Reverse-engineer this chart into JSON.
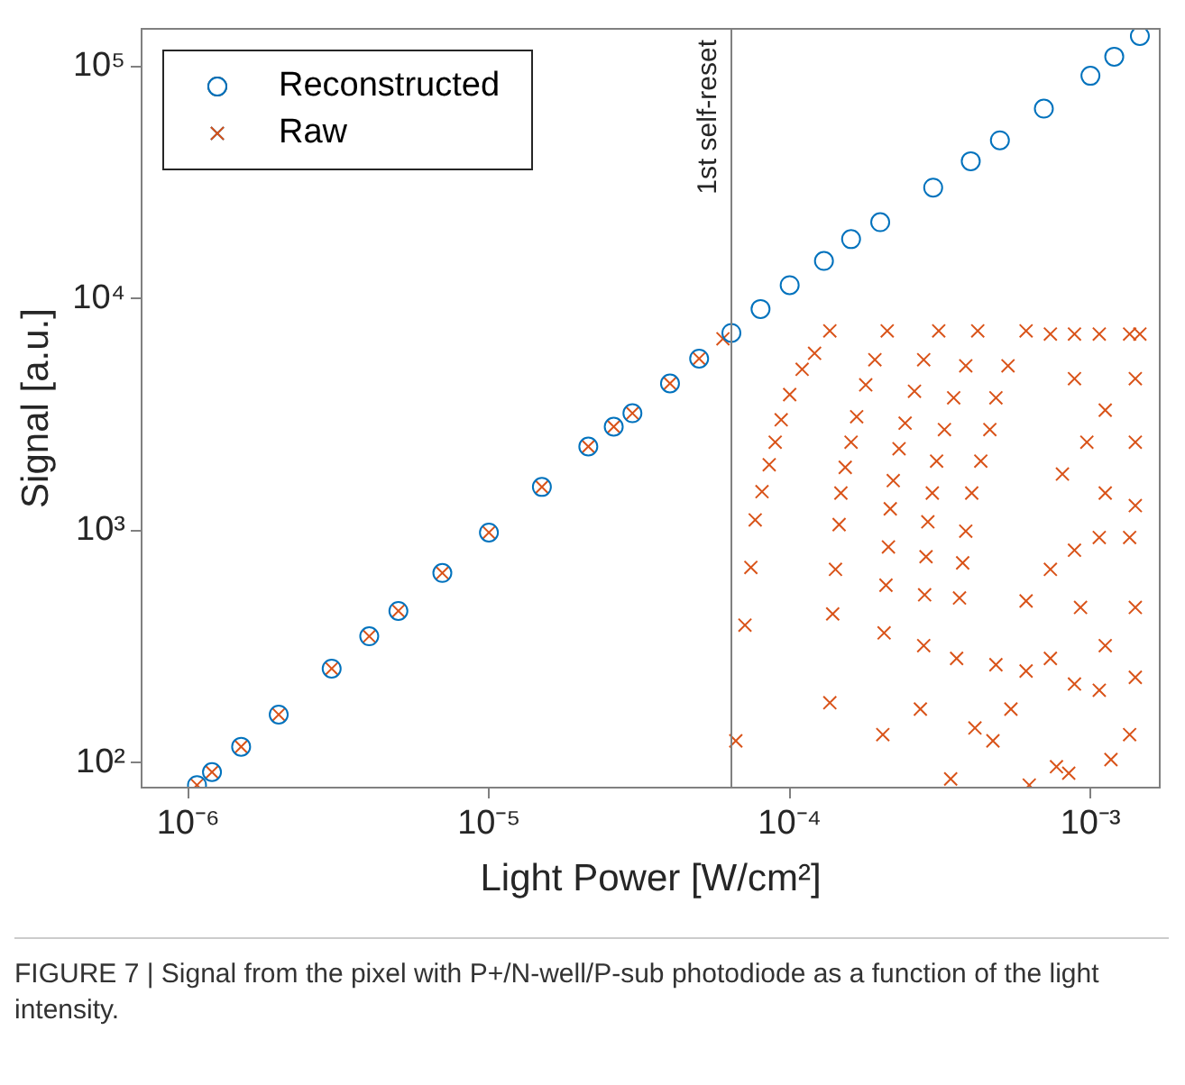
{
  "chart_data": {
    "type": "scatter",
    "xlabel": "Light Power [W/cm²]",
    "ylabel": "Signal [a.u.]",
    "log": "xy",
    "xlim": [
      7e-07,
      0.0017
    ],
    "ylim": [
      78,
      145000
    ],
    "xticks": [
      {
        "value": 1e-06,
        "label": "10⁻⁶"
      },
      {
        "value": 1e-05,
        "label": "10⁻⁵"
      },
      {
        "value": 0.0001,
        "label": "10⁻⁴"
      },
      {
        "value": 0.001,
        "label": "10⁻³"
      }
    ],
    "yticks": [
      {
        "value": 100,
        "label": "10²"
      },
      {
        "value": 1000,
        "label": "10³"
      },
      {
        "value": 10000,
        "label": "10⁴"
      },
      {
        "value": 100000,
        "label": "10⁵"
      }
    ],
    "grid": false,
    "legend": "top left",
    "ref_lines": [
      {
        "axis": "x",
        "value": 6.4e-05,
        "label": "1st self-reset",
        "color": "#808080"
      }
    ],
    "annotations": [
      "FIGURE 7 | Signal from the pixel with P+/N-well/P-sub photodiode as a function of the light intensity."
    ],
    "series": [
      {
        "name": "Reconstructed",
        "color": "#0072bd",
        "marker": "circle",
        "x": [
          1.07e-06,
          1.2e-06,
          1.5e-06,
          2e-06,
          3e-06,
          4e-06,
          5e-06,
          7e-06,
          1e-05,
          1.5e-05,
          2.14e-05,
          2.6e-05,
          3e-05,
          4e-05,
          5e-05,
          6.4e-05,
          8e-05,
          0.0001,
          0.00013,
          0.00016,
          0.0002,
          0.0003,
          0.0004,
          0.0005,
          0.0007,
          0.001,
          0.0012,
          0.00146
        ],
        "values": [
          80,
          91,
          117,
          161,
          254,
          350,
          450,
          656,
          980,
          1540,
          2300,
          2800,
          3200,
          4300,
          5500,
          7100,
          9000,
          11400,
          14500,
          18000,
          21300,
          30000,
          39000,
          48000,
          65700,
          91000,
          110000,
          135000
        ]
      },
      {
        "name": "Raw",
        "color": "#d95319",
        "marker": "cross",
        "x": [
          1.07e-06,
          1.2e-06,
          1.5e-06,
          2e-06,
          3e-06,
          4e-06,
          5e-06,
          7e-06,
          1e-05,
          1.5e-05,
          2.14e-05,
          2.6e-05,
          3e-05,
          4e-05,
          5e-05,
          6e-05,
          6.62e-05,
          7.1e-05,
          7.43e-05,
          7.68e-05,
          8.09e-05,
          8.55e-05,
          8.95e-05,
          9.37e-05,
          0.0001,
          0.00011,
          0.000121,
          0.000136,
          0.000136,
          0.000139,
          0.000142,
          0.000146,
          0.000148,
          0.000153,
          0.00016,
          0.000167,
          0.000179,
          0.000192,
          0.000211,
          0.000204,
          0.000206,
          0.000209,
          0.000213,
          0.000216,
          0.000221,
          0.000231,
          0.000242,
          0.00026,
          0.000279,
          0.000313,
          0.000272,
          0.000279,
          0.000281,
          0.000284,
          0.000288,
          0.000298,
          0.000308,
          0.000327,
          0.000351,
          0.000385,
          0.000422,
          0.000343,
          0.000359,
          0.000367,
          0.000376,
          0.000385,
          0.000403,
          0.000432,
          0.000463,
          0.000485,
          0.000532,
          0.000611,
          0.000413,
          0.000474,
          0.000544,
          0.000626,
          0.000771,
          0.000847,
          0.000885,
          0.00107,
          0.00117,
          0.00135,
          0.00141,
          0.000736,
          0.000611,
          0.000485,
          0.000927,
          0.00112,
          0.00141,
          0.00135,
          0.00107,
          0.000885,
          0.000736,
          0.000611,
          0.000736,
          0.000885,
          0.00107,
          0.00135,
          0.00146,
          0.000885,
          0.00112,
          0.00141,
          0.00141,
          0.000973,
          0.00112,
          0.00141,
          0.000807
        ],
        "values": [
          80,
          91,
          117,
          161,
          254,
          350,
          450,
          656,
          980,
          1540,
          2300,
          2800,
          3200,
          4300,
          5500,
          6700,
          124,
          391,
          693,
          1110,
          1470,
          1920,
          2400,
          3000,
          3850,
          4950,
          5800,
          7240,
          181,
          437,
          680,
          1060,
          1450,
          1870,
          2400,
          3090,
          4240,
          5440,
          7240,
          132,
          362,
          581,
          849,
          1240,
          1640,
          2250,
          2900,
          3980,
          5440,
          7240,
          170,
          319,
          528,
          771,
          1090,
          1450,
          1990,
          2720,
          3730,
          5120,
          7240,
          85,
          281,
          512,
          725,
          993,
          1450,
          1990,
          2720,
          3730,
          5120,
          7240,
          141,
          124,
          170,
          80,
          96,
          90,
          218,
          205,
          103,
          132,
          233,
          281,
          248,
          264,
          466,
          319,
          466,
          933,
          933,
          822,
          680,
          497,
          7020,
          7020,
          7020,
          7020,
          7020,
          4510,
          3300,
          4510,
          2400,
          2400,
          1450,
          1280,
          1750
        ]
      }
    ]
  }
}
